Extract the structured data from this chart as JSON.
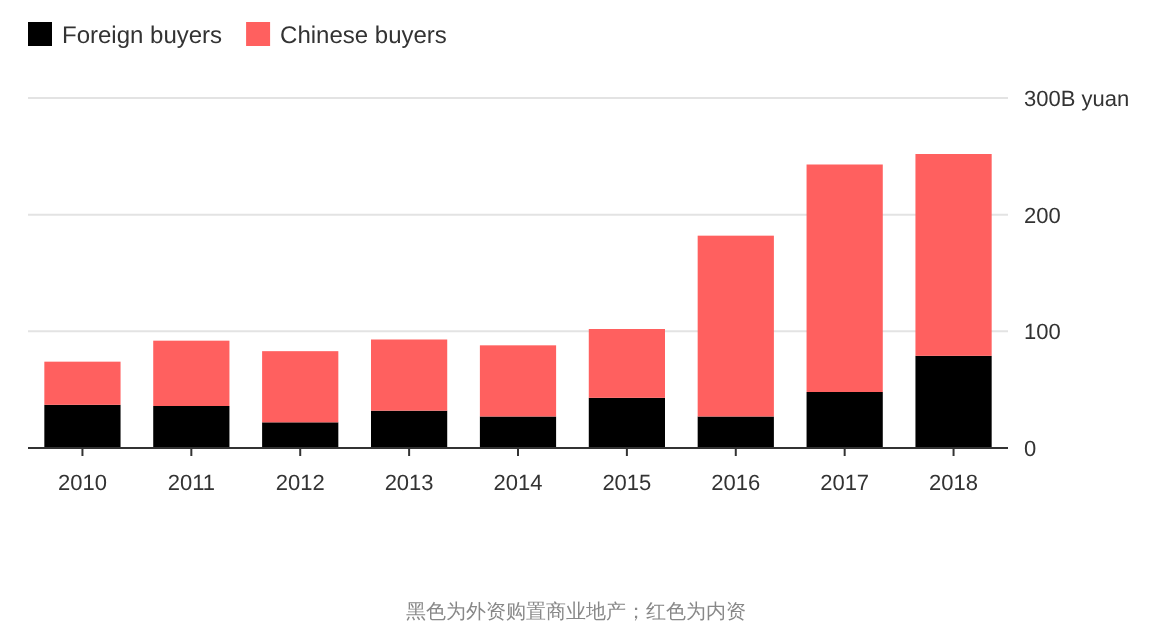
{
  "chart_data": {
    "type": "bar",
    "stacked": true,
    "categories": [
      "2010",
      "2011",
      "2012",
      "2013",
      "2014",
      "2015",
      "2016",
      "2017",
      "2018"
    ],
    "series": [
      {
        "name": "Foreign buyers",
        "color": "#000000",
        "values": [
          37,
          36,
          22,
          32,
          27,
          43,
          27,
          48,
          79
        ]
      },
      {
        "name": "Chinese buyers",
        "color": "#ff605f",
        "values": [
          37,
          56,
          61,
          61,
          61,
          59,
          155,
          195,
          173
        ]
      }
    ],
    "ylim": [
      0,
      300
    ],
    "yticks": [
      0,
      100,
      200,
      {
        "value": 300,
        "label": "300B yuan"
      }
    ],
    "grid": "y",
    "legend": "top left",
    "annotations": [
      "黑色为外资购置商业地产；红色为内资"
    ]
  }
}
